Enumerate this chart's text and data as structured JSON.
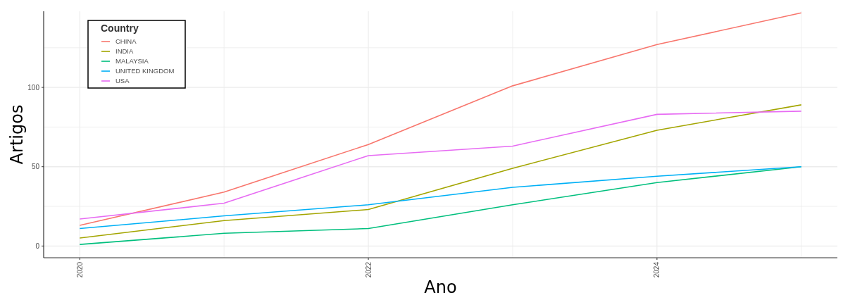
{
  "chart_data": {
    "type": "line",
    "xlabel": "Ano",
    "ylabel": "Artigos",
    "legend_title": "Country",
    "legend": "top left",
    "grid": true,
    "x": [
      2020,
      2021,
      2022,
      2023,
      2024,
      2025
    ],
    "xlim": [
      2019.75,
      2025.25
    ],
    "xticks": [
      2020,
      {
        "value": 2021,
        "label": null
      },
      2022,
      {
        "value": 2023,
        "label": null
      },
      2024,
      {
        "value": 2025,
        "label": null
      }
    ],
    "ylim": [
      -7.4,
      148
    ],
    "yticks": [
      0,
      {
        "value": 25,
        "label": null
      },
      50,
      {
        "value": 75,
        "label": null
      },
      100,
      {
        "value": 125,
        "label": null
      }
    ],
    "series": [
      {
        "name": "CHINA",
        "color": "#f8766d",
        "values": [
          13,
          34,
          64,
          101,
          127,
          147
        ]
      },
      {
        "name": "INDIA",
        "color": "#a3a500",
        "values": [
          5,
          16,
          23,
          49,
          73,
          89
        ]
      },
      {
        "name": "MALAYSIA",
        "color": "#00bf7d",
        "values": [
          1,
          8,
          11,
          26,
          40,
          50
        ]
      },
      {
        "name": "UNITED KINGDOM",
        "color": "#00b0f6",
        "values": [
          11,
          19,
          26,
          37,
          44,
          50
        ]
      },
      {
        "name": "USA",
        "color": "#e76bf3",
        "values": [
          17,
          27,
          57,
          63,
          83,
          85
        ]
      }
    ]
  }
}
